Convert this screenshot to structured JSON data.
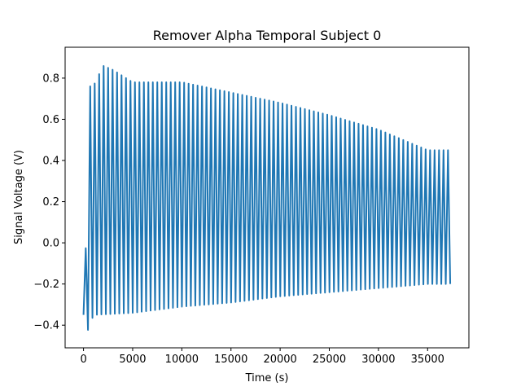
{
  "chart_data": {
    "type": "line",
    "title": "Remover Alpha Temporal Subject 0",
    "xlabel": "Time (s)",
    "ylabel": "Signal Voltage (V)",
    "xlim": [
      -1870,
      39200
    ],
    "ylim": [
      -0.51,
      0.95
    ],
    "xticks": [
      0,
      5000,
      10000,
      15000,
      20000,
      25000,
      30000,
      35000
    ],
    "xtick_labels": [
      "0",
      "5000",
      "10000",
      "15000",
      "20000",
      "25000",
      "30000",
      "35000"
    ],
    "yticks": [
      -0.4,
      -0.2,
      0.0,
      0.2,
      0.4,
      0.6,
      0.8
    ],
    "ytick_labels": [
      "−0.4",
      "−0.2",
      "0.0",
      "0.2",
      "0.4",
      "0.6",
      "0.8"
    ],
    "grid": false,
    "series": [
      {
        "color": "#1f77b4",
        "x_start": 0,
        "x_end": 37300,
        "cycles": 82,
        "peak_envelope_x": [
          0,
          400,
          500,
          1000,
          2000,
          3000,
          5000,
          10000,
          15000,
          20000,
          25000,
          30000,
          35000,
          37300
        ],
        "peak_envelope_y": [
          -0.31,
          0.19,
          0.76,
          0.76,
          0.86,
          0.84,
          0.78,
          0.78,
          0.73,
          0.68,
          0.62,
          0.55,
          0.45,
          0.45
        ],
        "trough_envelope_x": [
          0,
          500,
          1000,
          5000,
          10000,
          15000,
          20000,
          25000,
          30000,
          35000,
          37300
        ],
        "trough_envelope_y": [
          -0.35,
          -0.43,
          -0.35,
          -0.34,
          -0.31,
          -0.29,
          -0.26,
          -0.24,
          -0.22,
          -0.2,
          -0.2
        ]
      }
    ]
  }
}
